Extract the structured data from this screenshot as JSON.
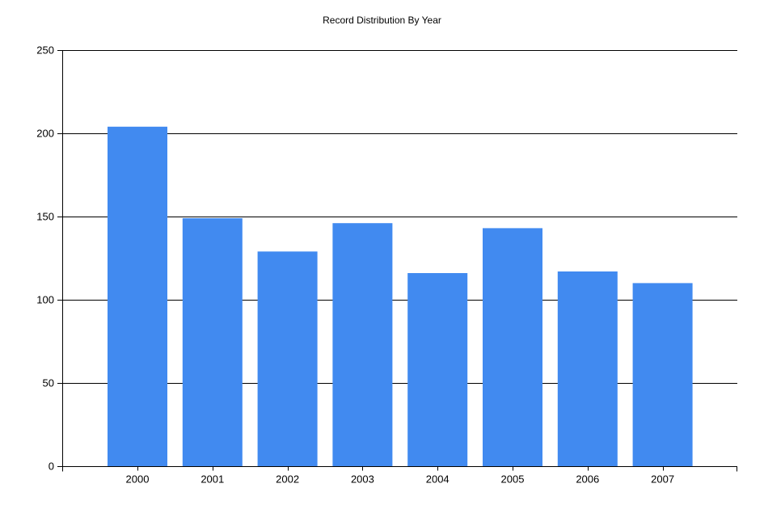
{
  "chart_data": {
    "type": "bar",
    "title": "Record Distribution By Year",
    "xlabel": "",
    "ylabel": "",
    "categories": [
      "2000",
      "2001",
      "2002",
      "2003",
      "2004",
      "2005",
      "2006",
      "2007"
    ],
    "values": [
      204,
      149,
      129,
      146,
      116,
      143,
      117,
      110
    ],
    "ylim": [
      0,
      250
    ],
    "yticks": [
      "0",
      "50",
      "100",
      "150",
      "200",
      "250"
    ],
    "grid": true,
    "legend": "none",
    "colors": {
      "bar": "#418AF0",
      "axis": "#000000",
      "grid": "#000000"
    }
  }
}
